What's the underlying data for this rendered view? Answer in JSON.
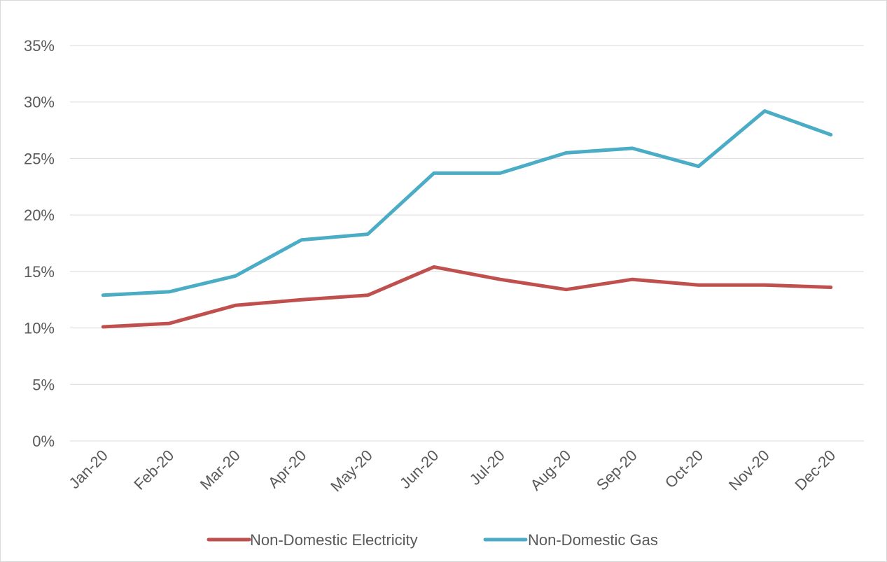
{
  "chart_data": {
    "type": "line",
    "categories": [
      "Jan-20",
      "Feb-20",
      "Mar-20",
      "Apr-20",
      "May-20",
      "Jun-20",
      "Jul-20",
      "Aug-20",
      "Sep-20",
      "Oct-20",
      "Nov-20",
      "Dec-20"
    ],
    "series": [
      {
        "name": "Non-Domestic Electricity",
        "color": "#c0504d",
        "values": [
          10.1,
          10.4,
          12.0,
          12.5,
          12.9,
          15.4,
          14.3,
          13.4,
          14.3,
          13.8,
          13.8,
          13.6
        ]
      },
      {
        "name": "Non-Domestic Gas",
        "color": "#4bacc6",
        "values": [
          12.9,
          13.2,
          14.6,
          17.8,
          18.3,
          23.7,
          23.7,
          25.5,
          25.9,
          24.3,
          29.2,
          27.1
        ]
      }
    ],
    "ylim": [
      0,
      35
    ],
    "yticks": [
      "0%",
      "5%",
      "10%",
      "15%",
      "20%",
      "25%",
      "30%",
      "35%"
    ],
    "ytick_values": [
      0,
      5,
      10,
      15,
      20,
      25,
      30,
      35
    ],
    "grid": true,
    "legend_position": "bottom",
    "title": "",
    "xlabel": "",
    "ylabel": ""
  }
}
